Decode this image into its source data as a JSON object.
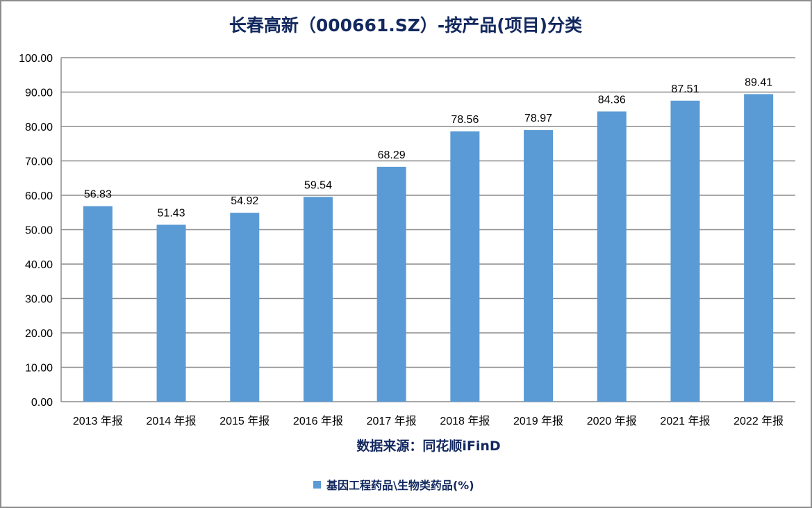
{
  "chart_data": {
    "type": "bar",
    "title": "长春高新（000661.SZ）-按产品(项目)分类",
    "xlabel": "数据来源：同花顺iFinD",
    "ylabel": "",
    "categories": [
      "2013 年报",
      "2014 年报",
      "2015 年报",
      "2016 年报",
      "2017 年报",
      "2018 年报",
      "2019 年报",
      "2020 年报",
      "2021 年报",
      "2022 年报"
    ],
    "series": [
      {
        "name": "基因工程药品\\生物类药品(%)",
        "values": [
          56.83,
          51.43,
          54.92,
          59.54,
          68.29,
          78.56,
          78.97,
          84.36,
          87.51,
          89.41
        ],
        "color": "#5b9bd5"
      }
    ],
    "data_labels": [
      "56.83",
      "51.43",
      "54.92",
      "59.54",
      "68.29",
      "78.56",
      "78.97",
      "84.36",
      "87.51",
      "89.41"
    ],
    "ylim": [
      0,
      100
    ],
    "yticks": [
      "0.00",
      "10.00",
      "20.00",
      "30.00",
      "40.00",
      "50.00",
      "60.00",
      "70.00",
      "80.00",
      "90.00",
      "100.00"
    ],
    "grid": true,
    "legend_position": "bottom"
  }
}
